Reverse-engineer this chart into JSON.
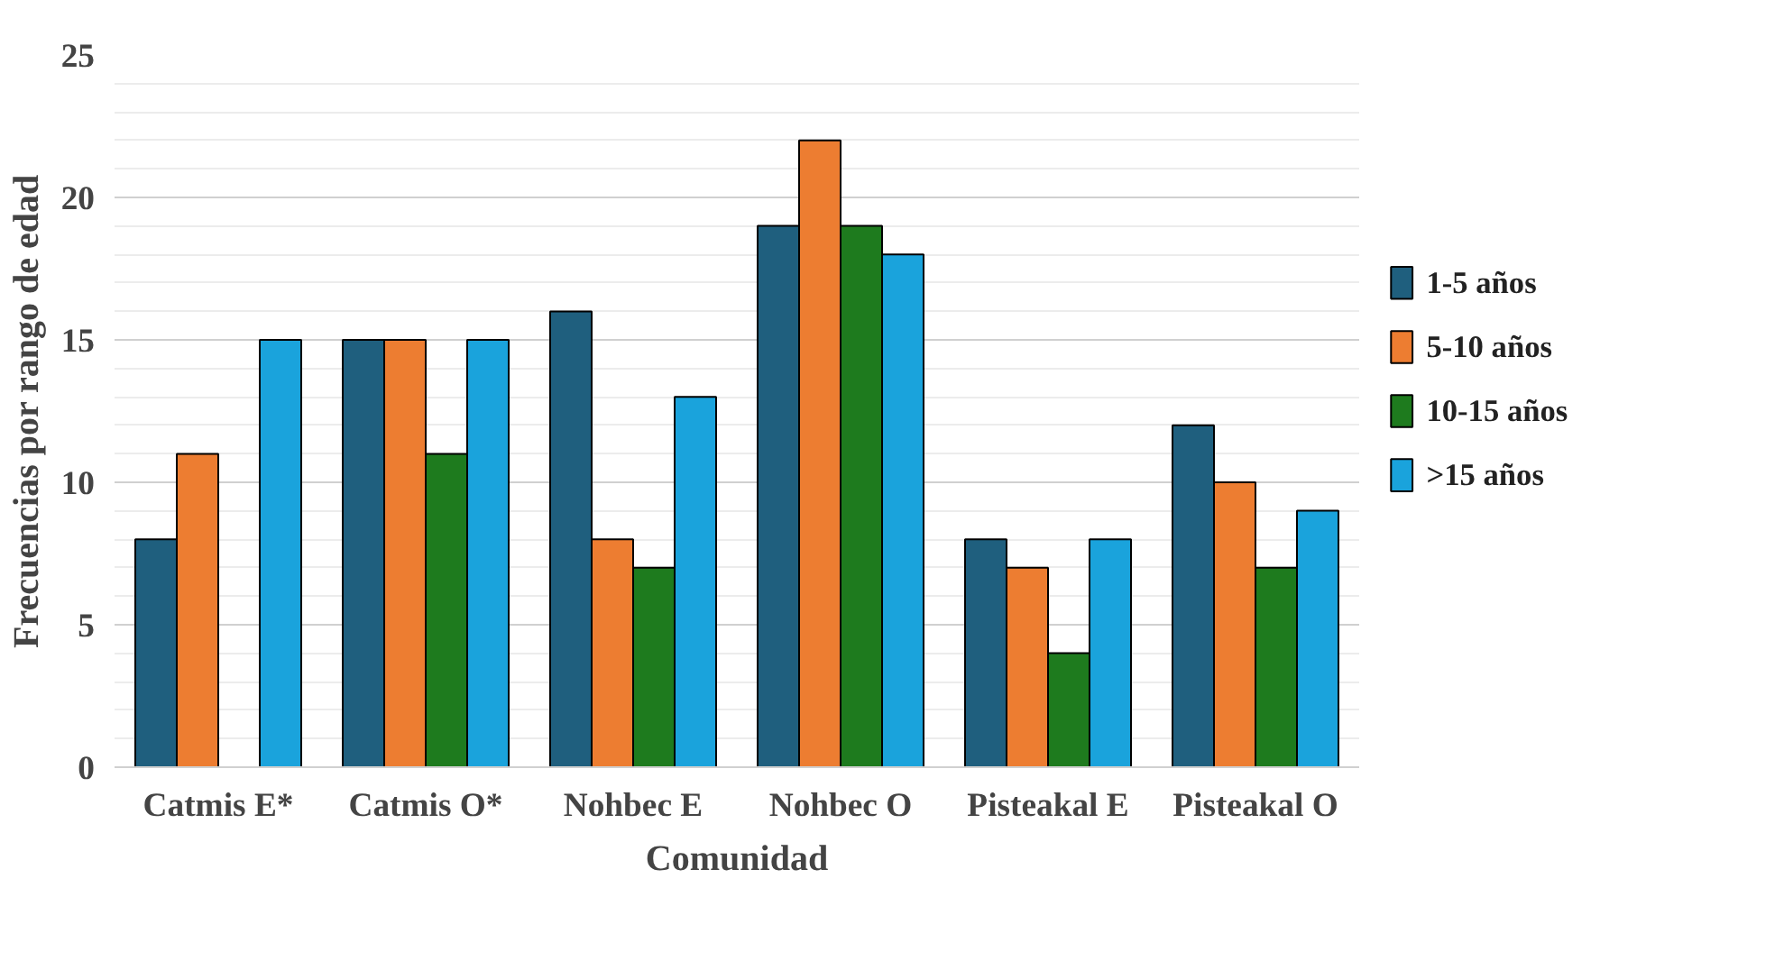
{
  "chart_data": {
    "type": "bar",
    "xlabel": "Comunidad",
    "ylabel": "Frecuencias por rango de edad",
    "categories": [
      "Catmis E*",
      "Catmis O*",
      "Nohbec E",
      "Nohbec O",
      "Pisteakal E",
      "Pisteakal O"
    ],
    "series": [
      {
        "name": "1-5 años",
        "color": "#1f5f7e",
        "values": [
          8,
          15,
          16,
          19,
          8,
          12
        ]
      },
      {
        "name": "5-10 años",
        "color": "#ed7d31",
        "values": [
          11,
          15,
          8,
          22,
          7,
          10
        ]
      },
      {
        "name": "10-15 años",
        "color": "#1e7b1e",
        "values": [
          0,
          11,
          7,
          19,
          4,
          7
        ]
      },
      {
        "name": ">15 años",
        "color": "#1aa3dc",
        "values": [
          15,
          15,
          13,
          18,
          8,
          9
        ]
      }
    ],
    "ylim": [
      0,
      25
    ],
    "yticks": [
      0,
      5,
      10,
      15,
      20,
      25
    ],
    "grid": "y",
    "legend": "right"
  }
}
